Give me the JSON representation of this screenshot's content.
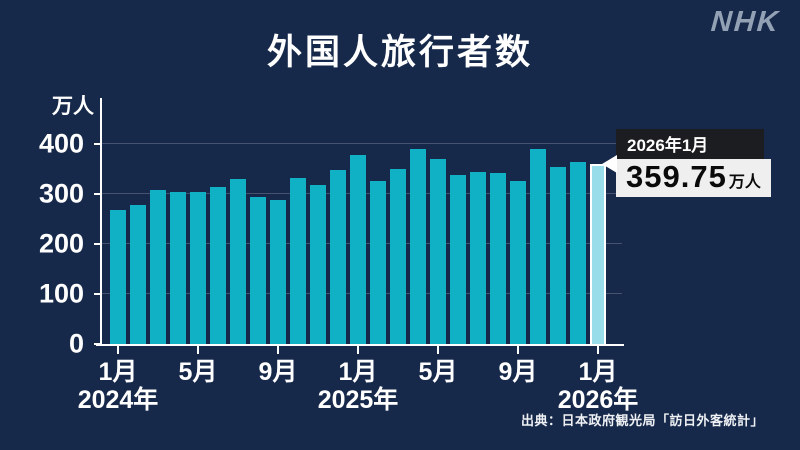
{
  "logo": "NHK",
  "title": "外国人旅行者数",
  "y_axis_unit": "万人",
  "source": "出典：日本政府観光局「訪日外客統計」",
  "callout": {
    "label": "2026年1月",
    "value": "359.75",
    "unit": "万人"
  },
  "chart_data": {
    "type": "bar",
    "title": "外国人旅行者数",
    "ylabel": "万人",
    "ylim": [
      0,
      400
    ],
    "yticks": [
      0,
      100,
      200,
      300,
      400
    ],
    "grid": true,
    "categories": [
      "2024-01",
      "2024-02",
      "2024-03",
      "2024-04",
      "2024-05",
      "2024-06",
      "2024-07",
      "2024-08",
      "2024-09",
      "2024-10",
      "2024-11",
      "2024-12",
      "2025-01",
      "2025-02",
      "2025-03",
      "2025-04",
      "2025-05",
      "2025-06",
      "2025-07",
      "2025-08",
      "2025-09",
      "2025-10",
      "2025-11",
      "2025-12",
      "2026-01"
    ],
    "values": [
      268.8,
      278.8,
      308.2,
      304.3,
      304.0,
      313.5,
      329.3,
      293.3,
      287.2,
      331.2,
      318.7,
      348.9,
      378.1,
      325.9,
      349.7,
      390.9,
      369.3,
      337.8,
      343.7,
      342.9,
      326.7,
      389.6,
      355.0,
      365.0,
      359.75
    ],
    "highlight_index": 24,
    "highlight_label": "2026年1月",
    "highlight_value": 359.75,
    "x_ticks": [
      {
        "index": 0,
        "label": "1月"
      },
      {
        "index": 4,
        "label": "5月"
      },
      {
        "index": 8,
        "label": "9月"
      },
      {
        "index": 12,
        "label": "1月"
      },
      {
        "index": 16,
        "label": "5月"
      },
      {
        "index": 20,
        "label": "9月"
      },
      {
        "index": 24,
        "label": "1月"
      }
    ],
    "year_labels": [
      {
        "index": 0,
        "label": "2024年"
      },
      {
        "index": 12,
        "label": "2025年"
      },
      {
        "index": 24,
        "label": "2026年"
      }
    ],
    "colors": {
      "background": "#17294b",
      "bar": "#10b1c5",
      "bar_highlight": "#99dcea",
      "axis": "#ffffff",
      "grid": "rgba(255,255,255,0.20)",
      "callout_header_bg": "#1c1d20",
      "callout_value_bg": "#efefef",
      "logo": "#93a1b5"
    }
  }
}
